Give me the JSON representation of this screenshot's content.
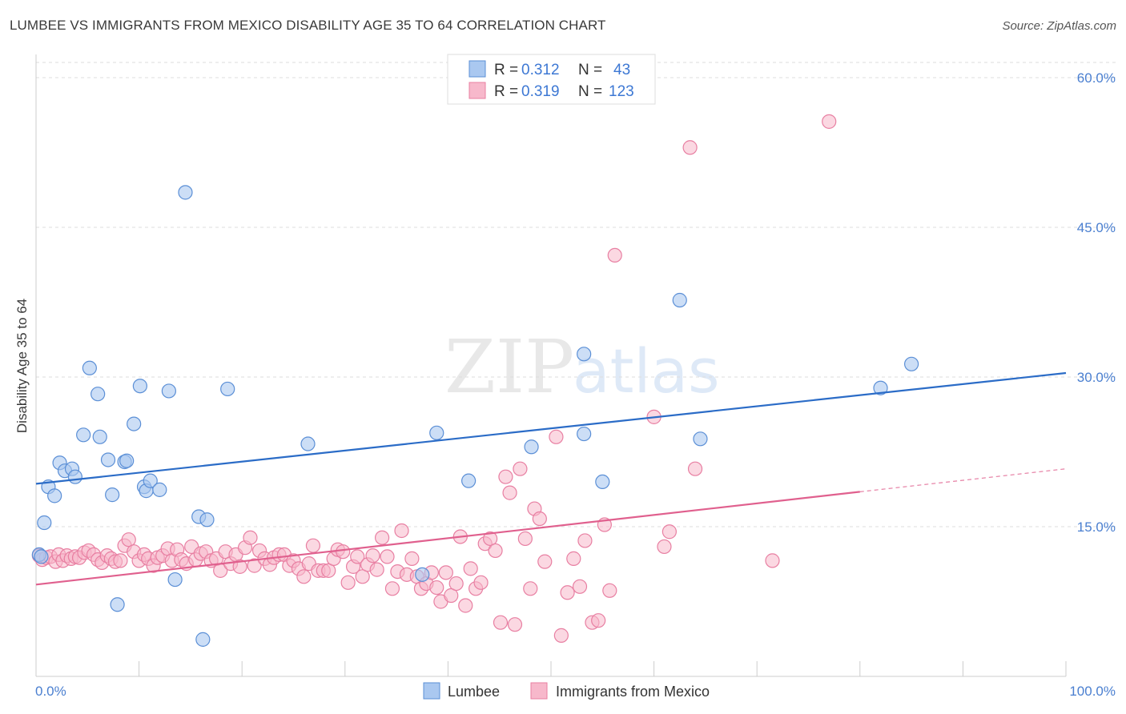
{
  "title": "LUMBEE VS IMMIGRANTS FROM MEXICO DISABILITY AGE 35 TO 64 CORRELATION CHART",
  "source": "Source: ZipAtlas.com",
  "watermark": {
    "zip": "ZIP",
    "atlas": "atlas"
  },
  "colors": {
    "lumbee_fill": "#aac8f0",
    "lumbee_stroke": "#5b8fd6",
    "lumbee_line": "#2b6cc7",
    "mexico_fill": "#f7b8cb",
    "mexico_stroke": "#e87fa2",
    "mexico_line": "#e0608e",
    "grid": "#dddddd",
    "axis_label": "#4a7fd0"
  },
  "legend": {
    "rows": [
      {
        "r_label": "R = ",
        "r_value": "0.312",
        "n_label": "N = ",
        "n_value": "43"
      },
      {
        "r_label": "R = ",
        "r_value": "0.319",
        "n_label": "N = ",
        "n_value": "123"
      }
    ]
  },
  "chart_data": {
    "type": "scatter",
    "title": "LUMBEE VS IMMIGRANTS FROM MEXICO DISABILITY AGE 35 TO 64 CORRELATION CHART",
    "xlabel": "",
    "ylabel": "Disability Age 35 to 64",
    "xlim": [
      0,
      100
    ],
    "ylim": [
      0,
      60
    ],
    "x_tick_labels": [
      "0.0%",
      "100.0%"
    ],
    "y_ticks": [
      15,
      30,
      45,
      60
    ],
    "y_tick_labels": [
      "15.0%",
      "30.0%",
      "45.0%",
      "60.0%"
    ],
    "grid": true,
    "legend_position": "top-center",
    "series": [
      {
        "name": "Lumbee",
        "r": 0.312,
        "n": 43,
        "trend": {
          "x": [
            0,
            100
          ],
          "y": [
            19.3,
            30.4
          ]
        },
        "points": [
          [
            0.3,
            12.2
          ],
          [
            0.8,
            15.4
          ],
          [
            1.2,
            19.0
          ],
          [
            1.8,
            18.1
          ],
          [
            2.3,
            21.4
          ],
          [
            2.8,
            20.6
          ],
          [
            3.5,
            20.8
          ],
          [
            3.8,
            20.0
          ],
          [
            4.6,
            24.2
          ],
          [
            5.2,
            30.9
          ],
          [
            6.0,
            28.3
          ],
          [
            6.2,
            24.0
          ],
          [
            7.0,
            21.7
          ],
          [
            7.4,
            18.2
          ],
          [
            7.9,
            7.2
          ],
          [
            8.6,
            21.5
          ],
          [
            8.8,
            21.6
          ],
          [
            9.5,
            25.3
          ],
          [
            10.1,
            29.1
          ],
          [
            10.5,
            19.0
          ],
          [
            10.7,
            18.6
          ],
          [
            11.1,
            19.6
          ],
          [
            12.0,
            18.7
          ],
          [
            12.9,
            28.6
          ],
          [
            13.5,
            9.7
          ],
          [
            14.5,
            48.5
          ],
          [
            15.8,
            16.0
          ],
          [
            16.2,
            3.7
          ],
          [
            16.6,
            15.7
          ],
          [
            18.6,
            28.8
          ],
          [
            26.4,
            23.3
          ],
          [
            37.5,
            10.2
          ],
          [
            38.9,
            24.4
          ],
          [
            42.0,
            19.6
          ],
          [
            48.1,
            23.0
          ],
          [
            53.2,
            32.3
          ],
          [
            53.2,
            24.3
          ],
          [
            55.0,
            19.5
          ],
          [
            62.5,
            37.7
          ],
          [
            64.5,
            23.8
          ],
          [
            82.0,
            28.9
          ],
          [
            85.0,
            31.3
          ],
          [
            0.5,
            12.0
          ]
        ]
      },
      {
        "name": "Immigrants from Mexico",
        "r": 0.319,
        "n": 123,
        "trend_solid": {
          "x": [
            0,
            80
          ],
          "y": [
            9.2,
            18.5
          ]
        },
        "trend_dashed": {
          "x": [
            80,
            100
          ],
          "y": [
            18.5,
            20.8
          ]
        },
        "points": [
          [
            0.3,
            12.1
          ],
          [
            0.6,
            11.7
          ],
          [
            1.0,
            11.9
          ],
          [
            1.4,
            12.0
          ],
          [
            1.9,
            11.5
          ],
          [
            2.2,
            12.2
          ],
          [
            2.6,
            11.6
          ],
          [
            3.0,
            12.1
          ],
          [
            3.4,
            11.8
          ],
          [
            3.8,
            12.0
          ],
          [
            4.2,
            11.9
          ],
          [
            4.7,
            12.4
          ],
          [
            5.1,
            12.6
          ],
          [
            5.6,
            12.2
          ],
          [
            6.0,
            11.7
          ],
          [
            6.4,
            11.4
          ],
          [
            6.9,
            12.1
          ],
          [
            7.3,
            11.8
          ],
          [
            7.7,
            11.5
          ],
          [
            8.2,
            11.6
          ],
          [
            8.6,
            13.1
          ],
          [
            9.0,
            13.7
          ],
          [
            9.5,
            12.5
          ],
          [
            10.0,
            11.6
          ],
          [
            10.5,
            12.2
          ],
          [
            10.9,
            11.8
          ],
          [
            11.4,
            11.1
          ],
          [
            11.8,
            11.9
          ],
          [
            12.3,
            12.1
          ],
          [
            12.8,
            12.8
          ],
          [
            13.2,
            11.6
          ],
          [
            13.7,
            12.7
          ],
          [
            14.1,
            11.7
          ],
          [
            14.6,
            11.3
          ],
          [
            15.1,
            13.0
          ],
          [
            15.5,
            11.7
          ],
          [
            16.0,
            12.3
          ],
          [
            16.5,
            12.5
          ],
          [
            17.0,
            11.6
          ],
          [
            17.5,
            11.8
          ],
          [
            17.9,
            10.6
          ],
          [
            18.4,
            12.5
          ],
          [
            18.9,
            11.3
          ],
          [
            19.4,
            12.2
          ],
          [
            19.8,
            11.0
          ],
          [
            20.3,
            12.9
          ],
          [
            20.8,
            13.9
          ],
          [
            21.2,
            11.1
          ],
          [
            21.7,
            12.6
          ],
          [
            22.2,
            11.8
          ],
          [
            22.7,
            11.2
          ],
          [
            23.1,
            11.9
          ],
          [
            23.6,
            12.2
          ],
          [
            24.1,
            12.2
          ],
          [
            24.6,
            11.1
          ],
          [
            25.0,
            11.6
          ],
          [
            25.5,
            10.8
          ],
          [
            26.0,
            10.0
          ],
          [
            26.5,
            11.3
          ],
          [
            26.9,
            13.1
          ],
          [
            27.4,
            10.6
          ],
          [
            27.9,
            10.6
          ],
          [
            28.4,
            10.6
          ],
          [
            28.9,
            11.8
          ],
          [
            29.3,
            12.7
          ],
          [
            29.8,
            12.5
          ],
          [
            30.3,
            9.4
          ],
          [
            30.8,
            11.0
          ],
          [
            31.2,
            12.0
          ],
          [
            31.7,
            10.0
          ],
          [
            32.2,
            11.2
          ],
          [
            32.7,
            12.1
          ],
          [
            33.1,
            10.7
          ],
          [
            33.6,
            13.9
          ],
          [
            34.1,
            12.0
          ],
          [
            34.6,
            8.8
          ],
          [
            35.1,
            10.5
          ],
          [
            35.5,
            14.6
          ],
          [
            36.0,
            10.2
          ],
          [
            36.5,
            11.8
          ],
          [
            37.0,
            10.0
          ],
          [
            37.4,
            8.8
          ],
          [
            37.9,
            9.3
          ],
          [
            38.4,
            10.4
          ],
          [
            38.9,
            8.9
          ],
          [
            39.3,
            7.5
          ],
          [
            39.8,
            10.4
          ],
          [
            40.3,
            8.1
          ],
          [
            40.8,
            9.3
          ],
          [
            41.2,
            14.0
          ],
          [
            41.7,
            7.1
          ],
          [
            42.2,
            10.8
          ],
          [
            42.7,
            8.8
          ],
          [
            43.2,
            9.4
          ],
          [
            43.6,
            13.3
          ],
          [
            44.1,
            13.8
          ],
          [
            44.6,
            12.6
          ],
          [
            45.1,
            5.4
          ],
          [
            45.6,
            20.0
          ],
          [
            46.0,
            18.4
          ],
          [
            46.5,
            5.2
          ],
          [
            47.0,
            20.8
          ],
          [
            47.5,
            13.8
          ],
          [
            48.0,
            8.8
          ],
          [
            48.4,
            16.8
          ],
          [
            48.9,
            15.8
          ],
          [
            49.4,
            11.5
          ],
          [
            50.5,
            24.0
          ],
          [
            51.0,
            4.1
          ],
          [
            51.6,
            8.4
          ],
          [
            52.2,
            11.8
          ],
          [
            52.8,
            9.0
          ],
          [
            53.3,
            13.6
          ],
          [
            54.0,
            5.4
          ],
          [
            54.6,
            5.6
          ],
          [
            55.2,
            15.2
          ],
          [
            55.7,
            8.6
          ],
          [
            56.2,
            42.2
          ],
          [
            60.0,
            26.0
          ],
          [
            61.0,
            13.0
          ],
          [
            61.5,
            14.5
          ],
          [
            63.5,
            53.0
          ],
          [
            64.0,
            20.8
          ],
          [
            71.5,
            11.6
          ],
          [
            77.0,
            55.6
          ]
        ]
      }
    ]
  },
  "bottom_legend": {
    "items": [
      "Lumbee",
      "Immigrants from Mexico"
    ]
  }
}
